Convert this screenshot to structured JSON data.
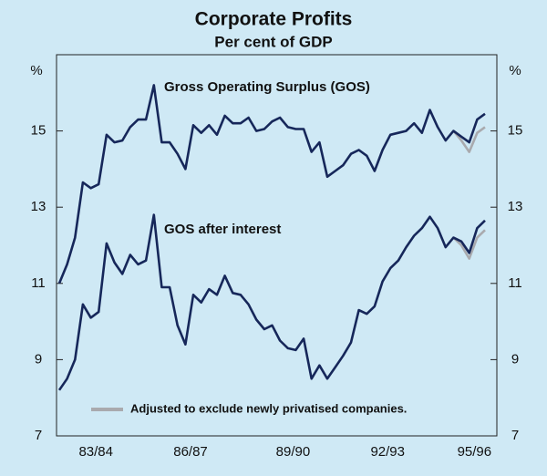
{
  "chart_data": {
    "type": "line",
    "title": "Corporate Profits",
    "subtitle": "Per cent of GDP",
    "ylabel": "%",
    "ylim": [
      7,
      17
    ],
    "yticks": [
      7,
      9,
      11,
      13,
      15
    ],
    "grid": false,
    "categories": [
      null,
      null,
      null,
      null,
      null,
      "83/84",
      null,
      null,
      null,
      null,
      null,
      null,
      null,
      null,
      null,
      null,
      null,
      "86/87",
      null,
      null,
      null,
      null,
      null,
      null,
      null,
      null,
      null,
      null,
      null,
      null,
      "89/90",
      null,
      null,
      null,
      null,
      null,
      null,
      null,
      null,
      null,
      null,
      null,
      "92/93",
      null,
      null,
      null,
      null,
      null,
      null,
      null,
      null,
      null,
      null,
      "95/96",
      null
    ],
    "series": [
      {
        "name": "Gross Operating Surplus (GOS)",
        "color": "#16275a",
        "values": [
          11.0,
          11.5,
          12.2,
          13.65,
          13.5,
          13.6,
          14.9,
          14.7,
          14.75,
          15.1,
          15.3,
          15.3,
          16.2,
          14.7,
          14.7,
          14.4,
          14.0,
          15.15,
          14.95,
          15.15,
          14.9,
          15.4,
          15.2,
          15.2,
          15.35,
          15.0,
          15.05,
          15.25,
          15.35,
          15.1,
          15.05,
          15.05,
          14.45,
          14.7,
          13.8,
          13.95,
          14.1,
          14.4,
          14.5,
          14.35,
          13.95,
          14.5,
          14.9,
          14.95,
          15.0,
          15.2,
          14.95,
          15.55,
          15.1,
          14.75,
          15.0,
          14.85,
          14.7,
          15.3,
          15.45
        ]
      },
      {
        "name": "GOS after interest",
        "color": "#16275a",
        "values": [
          8.2,
          8.5,
          9.0,
          10.45,
          10.1,
          10.25,
          12.05,
          11.55,
          11.25,
          11.75,
          11.5,
          11.6,
          12.8,
          10.9,
          10.9,
          9.9,
          9.4,
          10.7,
          10.5,
          10.85,
          10.7,
          11.2,
          10.75,
          10.7,
          10.45,
          10.05,
          9.8,
          9.9,
          9.5,
          9.3,
          9.25,
          9.55,
          8.5,
          8.85,
          8.5,
          8.8,
          9.1,
          9.45,
          10.3,
          10.2,
          10.4,
          11.05,
          11.4,
          11.6,
          11.95,
          12.25,
          12.45,
          12.75,
          12.45,
          11.95,
          12.2,
          12.1,
          11.8,
          12.45,
          12.65
        ]
      },
      {
        "name": "Adjusted to exclude newly privatised companies.",
        "color": "#a9aaae",
        "values": [
          null,
          null,
          null,
          null,
          null,
          null,
          null,
          null,
          null,
          null,
          null,
          null,
          null,
          null,
          null,
          null,
          null,
          null,
          null,
          null,
          null,
          null,
          null,
          null,
          null,
          null,
          null,
          null,
          null,
          null,
          null,
          null,
          null,
          null,
          null,
          null,
          null,
          null,
          null,
          null,
          null,
          null,
          null,
          null,
          null,
          null,
          null,
          null,
          null,
          null,
          15.0,
          14.75,
          14.45,
          14.95,
          15.1
        ]
      },
      {
        "color": "#a9aaae",
        "values": [
          null,
          null,
          null,
          null,
          null,
          null,
          null,
          null,
          null,
          null,
          null,
          null,
          null,
          null,
          null,
          null,
          null,
          null,
          null,
          null,
          null,
          null,
          null,
          null,
          null,
          null,
          null,
          null,
          null,
          null,
          null,
          null,
          null,
          null,
          null,
          null,
          null,
          null,
          null,
          null,
          null,
          null,
          null,
          null,
          null,
          null,
          null,
          null,
          null,
          null,
          12.2,
          12.0,
          11.65,
          12.2,
          12.4
        ]
      }
    ]
  }
}
